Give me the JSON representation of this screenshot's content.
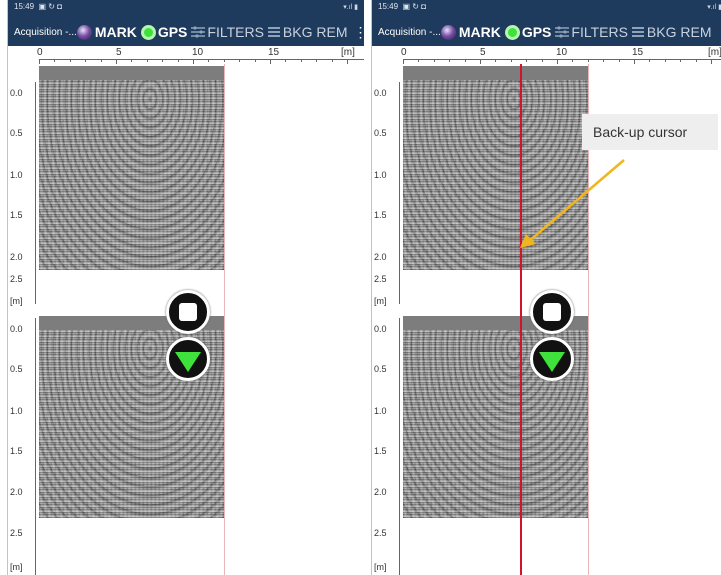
{
  "status_bar": {
    "time": "15:49",
    "icons": [
      "gallery-icon",
      "refresh-icon",
      "square-icon"
    ],
    "system": "wifi signal battery"
  },
  "toolbar": {
    "title": "Acquisition -...",
    "mark_label": "MARK",
    "gps_label": "GPS",
    "filters_label": "FILTERS",
    "bkg_label": "BKG REM",
    "more_label": "⋮"
  },
  "ruler": {
    "ticks": [
      "0",
      "5",
      "10",
      "15"
    ],
    "unit": "[m]"
  },
  "depth_axis": {
    "ticks": [
      "0.0",
      "0.5",
      "1.0",
      "1.5",
      "2.0",
      "2.5"
    ],
    "unit": "[m]"
  },
  "buttons": {
    "stop": "stop-button",
    "scroll": "scroll-down-button"
  },
  "annotation": {
    "text": "Back-up cursor"
  },
  "colors": {
    "toolbar": "#1e3a5c",
    "cursor": "#d0142c",
    "gps": "#3fe23a",
    "arrow": "#f2b51c"
  }
}
